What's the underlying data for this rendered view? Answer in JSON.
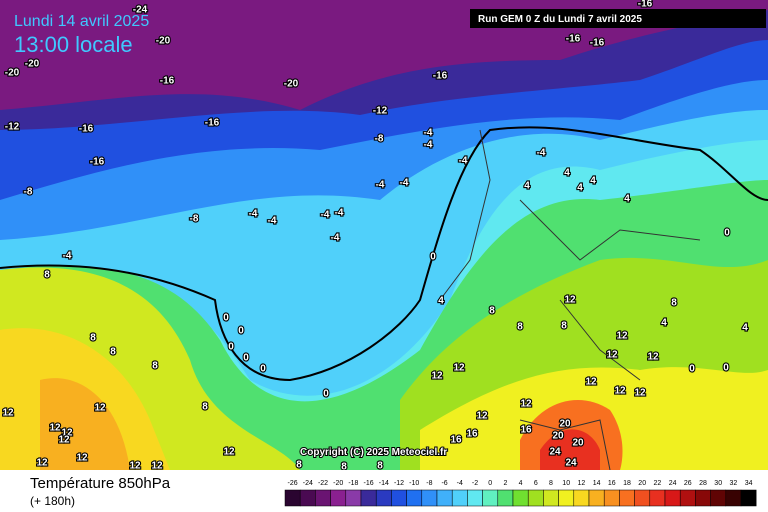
{
  "header": {
    "date": "Lundi 14 avril 2025",
    "time": "13:00 locale",
    "run": "Run GEM 0 Z du Lundi 7 avril 2025",
    "copyright": "Copyright (C) 2025 Meteociel.fr"
  },
  "footer": {
    "title": "Température 850hPa",
    "subtitle": "(+ 180h)"
  },
  "contour_labels": [
    "-24",
    "-20",
    "-20",
    "-20",
    "-16",
    "-20",
    "-16",
    "-16",
    "-16",
    "-16",
    "-12",
    "-16",
    "-16",
    "-12",
    "-8",
    "-16",
    "-8",
    "-4",
    "-4",
    "-4",
    "-4",
    "-4",
    "-4",
    "-8",
    "-4",
    "-4",
    "-4",
    "-4",
    "-4",
    "-4",
    "4",
    "4",
    "4",
    "4",
    "4",
    "0",
    "0",
    "8",
    "0",
    "0",
    "0",
    "0",
    "0",
    "0",
    "4",
    "8",
    "8",
    "8",
    "8",
    "8",
    "8",
    "8",
    "12",
    "12",
    "12",
    "4",
    "4",
    "8",
    "0",
    "0",
    "12",
    "12",
    "12",
    "12",
    "16",
    "16",
    "16",
    "20",
    "20",
    "20",
    "24",
    "24",
    "8",
    "8",
    "8",
    "12",
    "12",
    "12",
    "12",
    "12",
    "12",
    "12",
    "12",
    "12",
    "12",
    "12",
    "12",
    "12",
    "12"
  ],
  "legend": {
    "values": [
      -26,
      -24,
      -22,
      -20,
      -18,
      -16,
      -14,
      -12,
      -10,
      -8,
      -6,
      -4,
      -2,
      0,
      2,
      4,
      6,
      8,
      10,
      12,
      14,
      16,
      18,
      20,
      22,
      24,
      26,
      28,
      30,
      32,
      34
    ],
    "colors": [
      "#2a0530",
      "#4a0a52",
      "#6a1472",
      "#8a2090",
      "#8a3aa8",
      "#3a2a9a",
      "#2a3ac0",
      "#2050e0",
      "#2070f0",
      "#3090f8",
      "#40b0fa",
      "#50d0fa",
      "#60e8f0",
      "#60f0c0",
      "#50e070",
      "#70e030",
      "#a0e020",
      "#d0e820",
      "#f0f020",
      "#f8d820",
      "#f8b020",
      "#f89020",
      "#f87020",
      "#f05020",
      "#e83020",
      "#d81818",
      "#b01010",
      "#880808",
      "#600404",
      "#380202",
      "#000000"
    ]
  }
}
